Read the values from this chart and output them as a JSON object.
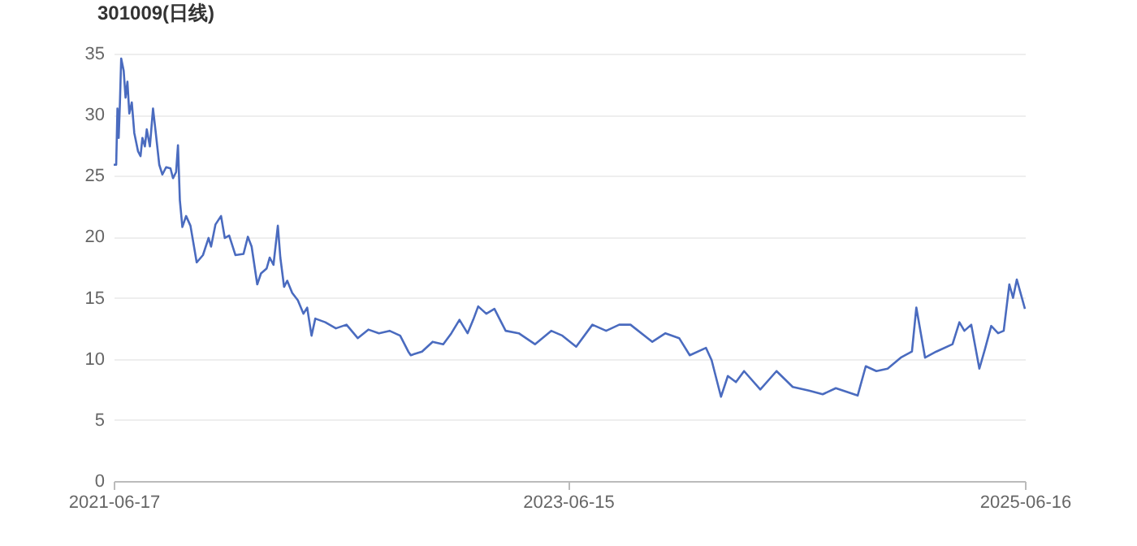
{
  "chart_data": {
    "type": "line",
    "title": "301009(日线)",
    "x": [
      "2021-06-17",
      "2021-06-21",
      "2021-06-23",
      "2021-06-25",
      "2021-06-27",
      "2021-06-29",
      "2021-07-03",
      "2021-07-06",
      "2021-07-09",
      "2021-07-12",
      "2021-07-16",
      "2021-07-20",
      "2021-07-26",
      "2021-07-30",
      "2021-08-02",
      "2021-08-06",
      "2021-08-09",
      "2021-08-14",
      "2021-08-19",
      "2021-08-23",
      "2021-08-29",
      "2021-09-03",
      "2021-09-09",
      "2021-09-16",
      "2021-09-20",
      "2021-09-25",
      "2021-09-28",
      "2021-10-01",
      "2021-10-05",
      "2021-10-11",
      "2021-10-18",
      "2021-10-28",
      "2021-11-07",
      "2021-11-16",
      "2021-11-20",
      "2021-11-27",
      "2021-12-06",
      "2021-12-12",
      "2021-12-19",
      "2021-12-29",
      "2022-01-11",
      "2022-01-18",
      "2022-01-24",
      "2022-02-02",
      "2022-02-08",
      "2022-02-17",
      "2022-02-22",
      "2022-02-28",
      "2022-03-07",
      "2022-03-11",
      "2022-03-17",
      "2022-03-22",
      "2022-03-30",
      "2022-04-08",
      "2022-04-17",
      "2022-04-23",
      "2022-04-30",
      "2022-05-06",
      "2022-05-22",
      "2022-06-08",
      "2022-06-25",
      "2022-07-13",
      "2022-07-30",
      "2022-08-16",
      "2022-09-02",
      "2022-09-19",
      "2022-10-02",
      "2022-10-06",
      "2022-10-24",
      "2022-11-10",
      "2022-11-27",
      "2022-12-10",
      "2022-12-23",
      "2023-01-05",
      "2023-01-14",
      "2023-01-22",
      "2023-02-04",
      "2023-02-17",
      "2023-03-07",
      "2023-03-28",
      "2023-04-23",
      "2023-05-19",
      "2023-06-06",
      "2023-06-28",
      "2023-07-24",
      "2023-08-15",
      "2023-09-05",
      "2023-09-23",
      "2023-10-28",
      "2023-11-18",
      "2023-12-10",
      "2023-12-27",
      "2024-01-22",
      "2024-01-31",
      "2024-02-15",
      "2024-02-26",
      "2024-03-10",
      "2024-03-23",
      "2024-04-18",
      "2024-05-14",
      "2024-06-09",
      "2024-07-05",
      "2024-07-27",
      "2024-08-17",
      "2024-09-21",
      "2024-10-04",
      "2024-10-21",
      "2024-11-08",
      "2024-11-29",
      "2024-12-17",
      "2024-12-24",
      "2025-01-07",
      "2025-01-25",
      "2025-02-20",
      "2025-03-03",
      "2025-03-11",
      "2025-03-22",
      "2025-04-04",
      "2025-04-13",
      "2025-04-23",
      "2025-05-04",
      "2025-05-13",
      "2025-05-22",
      "2025-05-28",
      "2025-06-03",
      "2025-06-09",
      "2025-06-16"
    ],
    "series": [
      {
        "color": "#4a6bbf",
        "values": [
          25.9,
          25.9,
          30.5,
          28.1,
          31.0,
          34.6,
          33.6,
          31.4,
          32.7,
          30.1,
          31.0,
          28.5,
          27.0,
          26.6,
          28.1,
          27.4,
          28.8,
          27.4,
          30.5,
          28.7,
          25.9,
          25.1,
          25.7,
          25.6,
          24.8,
          25.3,
          27.5,
          23.0,
          20.8,
          21.7,
          20.9,
          17.9,
          18.5,
          19.9,
          19.2,
          21.0,
          21.7,
          19.9,
          20.1,
          18.5,
          18.6,
          20.0,
          19.2,
          16.1,
          17.0,
          17.4,
          18.3,
          17.7,
          20.9,
          18.3,
          15.9,
          16.4,
          15.4,
          14.8,
          13.7,
          14.2,
          11.9,
          13.3,
          13.0,
          12.5,
          12.8,
          11.7,
          12.4,
          12.1,
          12.3,
          11.9,
          10.6,
          10.3,
          10.6,
          11.4,
          11.2,
          12.1,
          13.2,
          12.1,
          13.2,
          14.3,
          13.7,
          14.1,
          12.3,
          12.1,
          11.2,
          12.3,
          11.9,
          11.0,
          12.8,
          12.3,
          12.8,
          12.8,
          11.4,
          12.1,
          11.7,
          10.3,
          10.9,
          9.9,
          6.9,
          8.6,
          8.1,
          9.0,
          7.5,
          9.0,
          7.7,
          7.4,
          7.1,
          7.6,
          7.0,
          9.4,
          9.0,
          9.2,
          10.1,
          10.6,
          14.2,
          10.1,
          10.6,
          11.2,
          13.0,
          12.3,
          12.8,
          9.2,
          10.8,
          12.7,
          12.1,
          12.3,
          16.1,
          15.0,
          16.5,
          15.4,
          14.1
        ]
      }
    ],
    "xlim": [
      "2021-06-17",
      "2025-06-16"
    ],
    "xticks": [
      "2021-06-17",
      "2023-06-15",
      "2025-06-16"
    ],
    "ylim": [
      0,
      35
    ],
    "yticks": [
      0,
      5,
      10,
      15,
      20,
      25,
      30,
      35
    ],
    "grid": "y",
    "marker": "none",
    "line_style": "solid",
    "legend": false
  }
}
